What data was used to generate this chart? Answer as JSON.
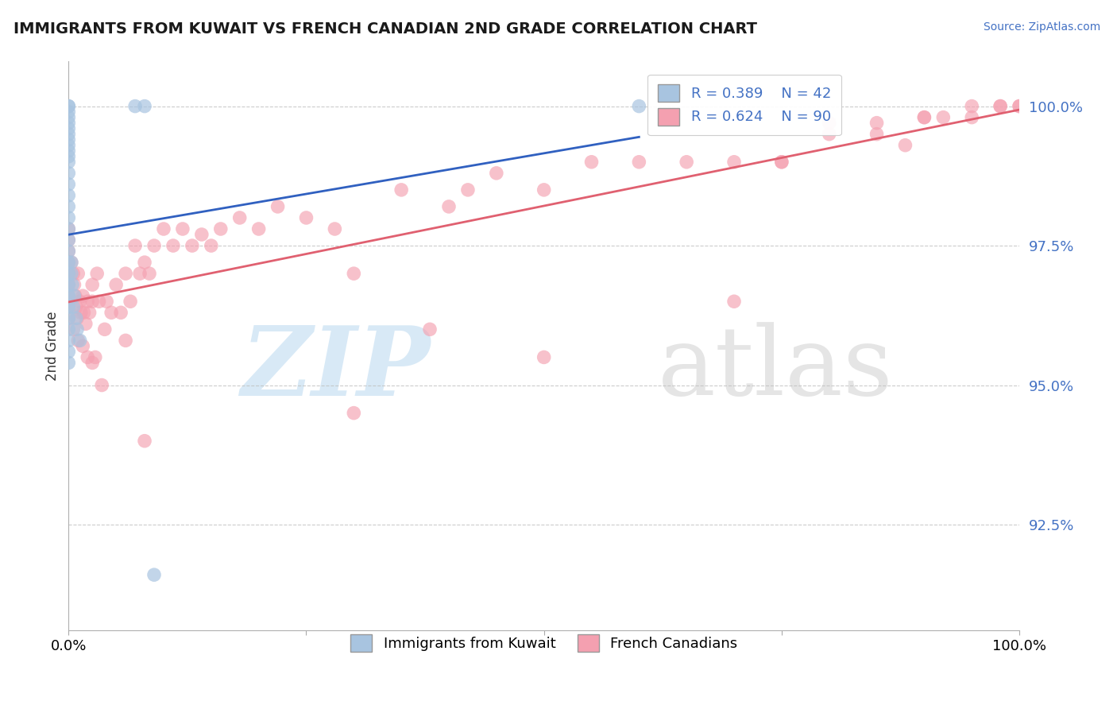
{
  "title": "IMMIGRANTS FROM KUWAIT VS FRENCH CANADIAN 2ND GRADE CORRELATION CHART",
  "source": "Source: ZipAtlas.com",
  "ylabel": "2nd Grade",
  "xlim": [
    0.0,
    1.0
  ],
  "ylim": [
    0.906,
    1.008
  ],
  "yticks": [
    0.925,
    0.95,
    0.975,
    1.0
  ],
  "ytick_labels": [
    "92.5%",
    "95.0%",
    "97.5%",
    "100.0%"
  ],
  "xticks": [
    0.0,
    0.25,
    0.5,
    0.75,
    1.0
  ],
  "xtick_labels": [
    "0.0%",
    "",
    "",
    "",
    "100.0%"
  ],
  "blue_R": 0.389,
  "blue_N": 42,
  "pink_R": 0.624,
  "pink_N": 90,
  "blue_color": "#a8c4e0",
  "pink_color": "#f4a0b0",
  "blue_line_color": "#3060c0",
  "pink_line_color": "#e06070",
  "legend_blue_label": "Immigrants from Kuwait",
  "legend_pink_label": "French Canadians",
  "watermark_zip": "ZIP",
  "watermark_atlas": "atlas",
  "blue_points_x": [
    0.0,
    0.0,
    0.0,
    0.0,
    0.0,
    0.0,
    0.0,
    0.0,
    0.0,
    0.0,
    0.0,
    0.0,
    0.0,
    0.0,
    0.0,
    0.0,
    0.0,
    0.0,
    0.0,
    0.0,
    0.0,
    0.0,
    0.0,
    0.0,
    0.0,
    0.0,
    0.0,
    0.0,
    0.0,
    0.0,
    0.003,
    0.003,
    0.004,
    0.005,
    0.006,
    0.008,
    0.009,
    0.012,
    0.07,
    0.08,
    0.09,
    0.6
  ],
  "blue_points_y": [
    1.0,
    1.0,
    0.999,
    0.998,
    0.997,
    0.996,
    0.995,
    0.994,
    0.993,
    0.992,
    0.991,
    0.99,
    0.988,
    0.986,
    0.984,
    0.982,
    0.98,
    0.978,
    0.976,
    0.974,
    0.972,
    0.97,
    0.968,
    0.966,
    0.964,
    0.962,
    0.96,
    0.958,
    0.956,
    0.954,
    0.972,
    0.97,
    0.968,
    0.964,
    0.966,
    0.962,
    0.96,
    0.958,
    1.0,
    1.0,
    0.916,
    1.0
  ],
  "pink_points_x": [
    0.0,
    0.0,
    0.0,
    0.0,
    0.0,
    0.0,
    0.0,
    0.0,
    0.003,
    0.005,
    0.006,
    0.007,
    0.008,
    0.009,
    0.01,
    0.012,
    0.013,
    0.015,
    0.016,
    0.018,
    0.02,
    0.022,
    0.025,
    0.025,
    0.028,
    0.03,
    0.032,
    0.035,
    0.038,
    0.04,
    0.045,
    0.05,
    0.055,
    0.06,
    0.065,
    0.07,
    0.075,
    0.08,
    0.085,
    0.09,
    0.1,
    0.11,
    0.12,
    0.13,
    0.14,
    0.15,
    0.16,
    0.18,
    0.2,
    0.22,
    0.25,
    0.28,
    0.3,
    0.35,
    0.38,
    0.4,
    0.42,
    0.45,
    0.5,
    0.55,
    0.6,
    0.65,
    0.7,
    0.75,
    0.8,
    0.85,
    0.88,
    0.9,
    0.92,
    0.95,
    0.98,
    1.0,
    0.0,
    0.005,
    0.01,
    0.015,
    0.02,
    0.025,
    0.06,
    0.08,
    0.3,
    0.5,
    0.7,
    0.75,
    0.8,
    0.85,
    0.9,
    0.95,
    0.98,
    1.0
  ],
  "pink_points_y": [
    0.978,
    0.976,
    0.974,
    0.972,
    0.97,
    0.968,
    0.966,
    0.964,
    0.972,
    0.97,
    0.968,
    0.966,
    0.964,
    0.962,
    0.97,
    0.965,
    0.963,
    0.966,
    0.963,
    0.961,
    0.965,
    0.963,
    0.968,
    0.965,
    0.955,
    0.97,
    0.965,
    0.95,
    0.96,
    0.965,
    0.963,
    0.968,
    0.963,
    0.97,
    0.965,
    0.975,
    0.97,
    0.972,
    0.97,
    0.975,
    0.978,
    0.975,
    0.978,
    0.975,
    0.977,
    0.975,
    0.978,
    0.98,
    0.978,
    0.982,
    0.98,
    0.978,
    0.97,
    0.985,
    0.96,
    0.982,
    0.985,
    0.988,
    0.985,
    0.99,
    0.99,
    0.99,
    0.99,
    0.99,
    0.997,
    0.997,
    0.993,
    0.998,
    0.998,
    1.0,
    1.0,
    1.0,
    0.962,
    0.96,
    0.958,
    0.957,
    0.955,
    0.954,
    0.958,
    0.94,
    0.945,
    0.955,
    0.965,
    0.99,
    0.995,
    0.995,
    0.998,
    0.998,
    1.0,
    1.0
  ]
}
